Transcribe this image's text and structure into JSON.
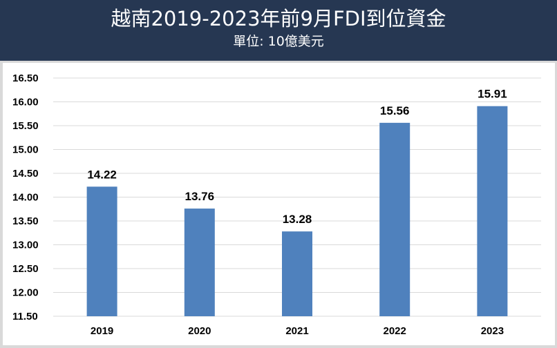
{
  "header": {
    "title": "越南2019-2023年前9月FDI到位資金",
    "subtitle": "單位: 10億美元"
  },
  "chart_data": {
    "type": "bar",
    "title": "越南2019-2023年前9月FDI到位資金",
    "subtitle": "單位: 10億美元",
    "categories": [
      "2019",
      "2020",
      "2021",
      "2022",
      "2023"
    ],
    "values": [
      14.22,
      13.76,
      13.28,
      15.56,
      15.91
    ],
    "data_labels": [
      "14.22",
      "13.76",
      "13.28",
      "15.56",
      "15.91"
    ],
    "ylim": [
      11.5,
      16.5
    ],
    "yticks": [
      "11.50",
      "12.00",
      "12.50",
      "13.00",
      "13.50",
      "14.00",
      "14.50",
      "15.00",
      "15.50",
      "16.00",
      "16.50"
    ],
    "grid": true,
    "legend": "none",
    "bar_color": "#4f81bd"
  }
}
